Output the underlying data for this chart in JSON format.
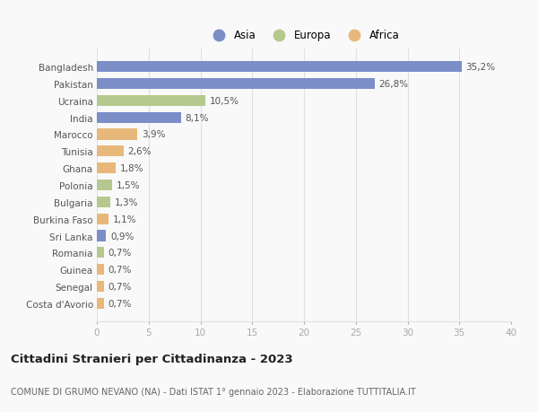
{
  "categories": [
    "Costa d'Avorio",
    "Senegal",
    "Guinea",
    "Romania",
    "Sri Lanka",
    "Burkina Faso",
    "Bulgaria",
    "Polonia",
    "Ghana",
    "Tunisia",
    "Marocco",
    "India",
    "Ucraina",
    "Pakistan",
    "Bangladesh"
  ],
  "values": [
    0.7,
    0.7,
    0.7,
    0.7,
    0.9,
    1.1,
    1.3,
    1.5,
    1.8,
    2.6,
    3.9,
    8.1,
    10.5,
    26.8,
    35.2
  ],
  "labels": [
    "0,7%",
    "0,7%",
    "0,7%",
    "0,7%",
    "0,9%",
    "1,1%",
    "1,3%",
    "1,5%",
    "1,8%",
    "2,6%",
    "3,9%",
    "8,1%",
    "10,5%",
    "26,8%",
    "35,2%"
  ],
  "continents": [
    "Africa",
    "Africa",
    "Africa",
    "Europa",
    "Asia",
    "Africa",
    "Europa",
    "Europa",
    "Africa",
    "Africa",
    "Africa",
    "Asia",
    "Europa",
    "Asia",
    "Asia"
  ],
  "colors": {
    "Asia": "#7b8ec8",
    "Europa": "#b5c98e",
    "Africa": "#e8b87a"
  },
  "xlim": [
    0,
    40
  ],
  "xticks": [
    0,
    5,
    10,
    15,
    20,
    25,
    30,
    35,
    40
  ],
  "title": "Cittadini Stranieri per Cittadinanza - 2023",
  "subtitle": "COMUNE DI GRUMO NEVANO (NA) - Dati ISTAT 1° gennaio 2023 - Elaborazione TUTTITALIA.IT",
  "background_color": "#f9f9f9",
  "grid_color": "#e0e0e0",
  "title_fontsize": 9.5,
  "subtitle_fontsize": 7,
  "label_fontsize": 7.5,
  "tick_fontsize": 7.5,
  "legend_fontsize": 8.5
}
